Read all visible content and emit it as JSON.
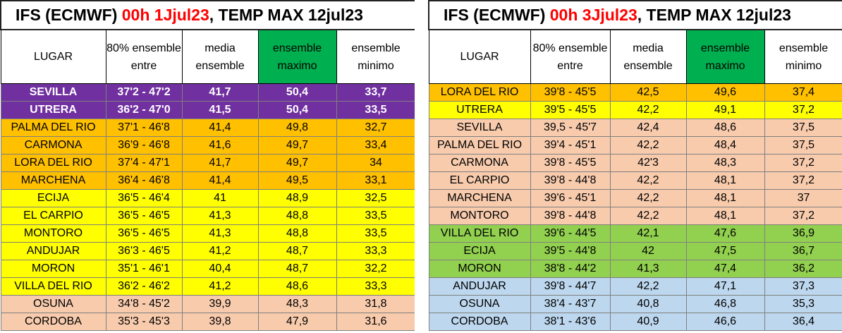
{
  "headers": [
    "LUGAR",
    "80% ensemble entre",
    "media ensemble",
    "ensemble maximo",
    "ensemble minimo"
  ],
  "left": {
    "title_pre": "IFS (ECMWF) ",
    "title_red": "00h 1Jjul23",
    "title_post": ", TEMP MAX 12jul23",
    "rows": [
      {
        "color": "purple",
        "cells": [
          "SEVILLA",
          "37'2 - 47'2",
          "41,7",
          "50,4",
          "33,7"
        ]
      },
      {
        "color": "purple",
        "cells": [
          "UTRERA",
          "36'2 - 47'0",
          "41,5",
          "50,4",
          "33,5"
        ]
      },
      {
        "color": "orange",
        "cells": [
          "PALMA DEL RIO",
          "37'1 - 46'8",
          "41,4",
          "49,8",
          "32,7"
        ]
      },
      {
        "color": "orange",
        "cells": [
          "CARMONA",
          "36'9 - 46'8",
          "41,6",
          "49,7",
          "33,4"
        ]
      },
      {
        "color": "orange",
        "cells": [
          "LORA DEL RIO",
          "37'4 - 47'1",
          "41,7",
          "49,7",
          "34"
        ]
      },
      {
        "color": "orange",
        "cells": [
          "MARCHENA",
          "36'4 - 46'8",
          "41,4",
          "49,5",
          "33,1"
        ]
      },
      {
        "color": "yellow",
        "cells": [
          "ECIJA",
          "36'5 - 46'4",
          "41",
          "48,9",
          "32,5"
        ]
      },
      {
        "color": "yellow",
        "cells": [
          "EL CARPIO",
          "36'5 - 46'5",
          "41,3",
          "48,8",
          "33,5"
        ]
      },
      {
        "color": "yellow",
        "cells": [
          "MONTORO",
          "36'5 - 46'5",
          "41,3",
          "48,8",
          "33,5"
        ]
      },
      {
        "color": "yellow",
        "cells": [
          "ANDUJAR",
          "36'3 - 46'5",
          "41,2",
          "48,7",
          "33,3"
        ]
      },
      {
        "color": "yellow",
        "cells": [
          "MORON",
          "35'1 - 46'1",
          "40,4",
          "48,7",
          "32,2"
        ]
      },
      {
        "color": "yellow",
        "cells": [
          "VILLA DEL RIO",
          "36'2 - 46'2",
          "41,2",
          "48,6",
          "33,3"
        ]
      },
      {
        "color": "peach",
        "cells": [
          "OSUNA",
          "34'8 - 45'2",
          "39,9",
          "48,3",
          "31,8"
        ]
      },
      {
        "color": "peach",
        "cells": [
          "CORDOBA",
          "35'3 - 45'3",
          "39,8",
          "47,9",
          "31,6"
        ]
      }
    ]
  },
  "right": {
    "title_pre": "IFS (ECMWF) ",
    "title_red": "00h 3Jjul23",
    "title_post": ", TEMP MAX 12jul23",
    "rows": [
      {
        "color": "orange",
        "cells": [
          "LORA DEL RIO",
          "39'8 - 45'5",
          "42,5",
          "49,6",
          "37,4"
        ]
      },
      {
        "color": "yellow",
        "cells": [
          "UTRERA",
          "39'5 - 45'5",
          "42,2",
          "49,1",
          "37,2"
        ]
      },
      {
        "color": "peach",
        "cells": [
          "SEVILLA",
          "39,5 - 45'7",
          "42,4",
          "48,6",
          "37,5"
        ]
      },
      {
        "color": "peach",
        "cells": [
          "PALMA DEL RIO",
          "39'4 - 45'1",
          "42,2",
          "48,4",
          "37,5"
        ]
      },
      {
        "color": "peach",
        "cells": [
          "CARMONA",
          "39'8 - 45'5",
          "42'3",
          "48,3",
          "37,2"
        ]
      },
      {
        "color": "peach",
        "cells": [
          "EL CARPIO",
          "39'8 - 44'8",
          "42,2",
          "48,1",
          "37,2"
        ]
      },
      {
        "color": "peach",
        "cells": [
          "MARCHENA",
          "39'6 - 45'1",
          "42,2",
          "48,1",
          "37"
        ]
      },
      {
        "color": "peach",
        "cells": [
          "MONTORO",
          "39'8 - 44'8",
          "42,2",
          "48,1",
          "37,2"
        ]
      },
      {
        "color": "lgreen",
        "cells": [
          "VILLA DEL RIO",
          "39'6 - 44'5",
          "42,1",
          "47,6",
          "36,9"
        ]
      },
      {
        "color": "lgreen",
        "cells": [
          "ECIJA",
          "39'5 - 44'8",
          "42",
          "47,5",
          "36,7"
        ]
      },
      {
        "color": "lgreen",
        "cells": [
          "MORON",
          "38'8 - 44'2",
          "41,3",
          "47,4",
          "36,2"
        ]
      },
      {
        "color": "lblue",
        "cells": [
          "ANDUJAR",
          "39'8 - 44'7",
          "42,2",
          "47,1",
          "37,3"
        ]
      },
      {
        "color": "lblue",
        "cells": [
          "OSUNA",
          "38'4 - 43'7",
          "40,8",
          "46,8",
          "35,3"
        ]
      },
      {
        "color": "lblue",
        "cells": [
          "CORDOBA",
          "38'1 - 43'6",
          "40,9",
          "46,6",
          "36,4"
        ]
      }
    ]
  }
}
